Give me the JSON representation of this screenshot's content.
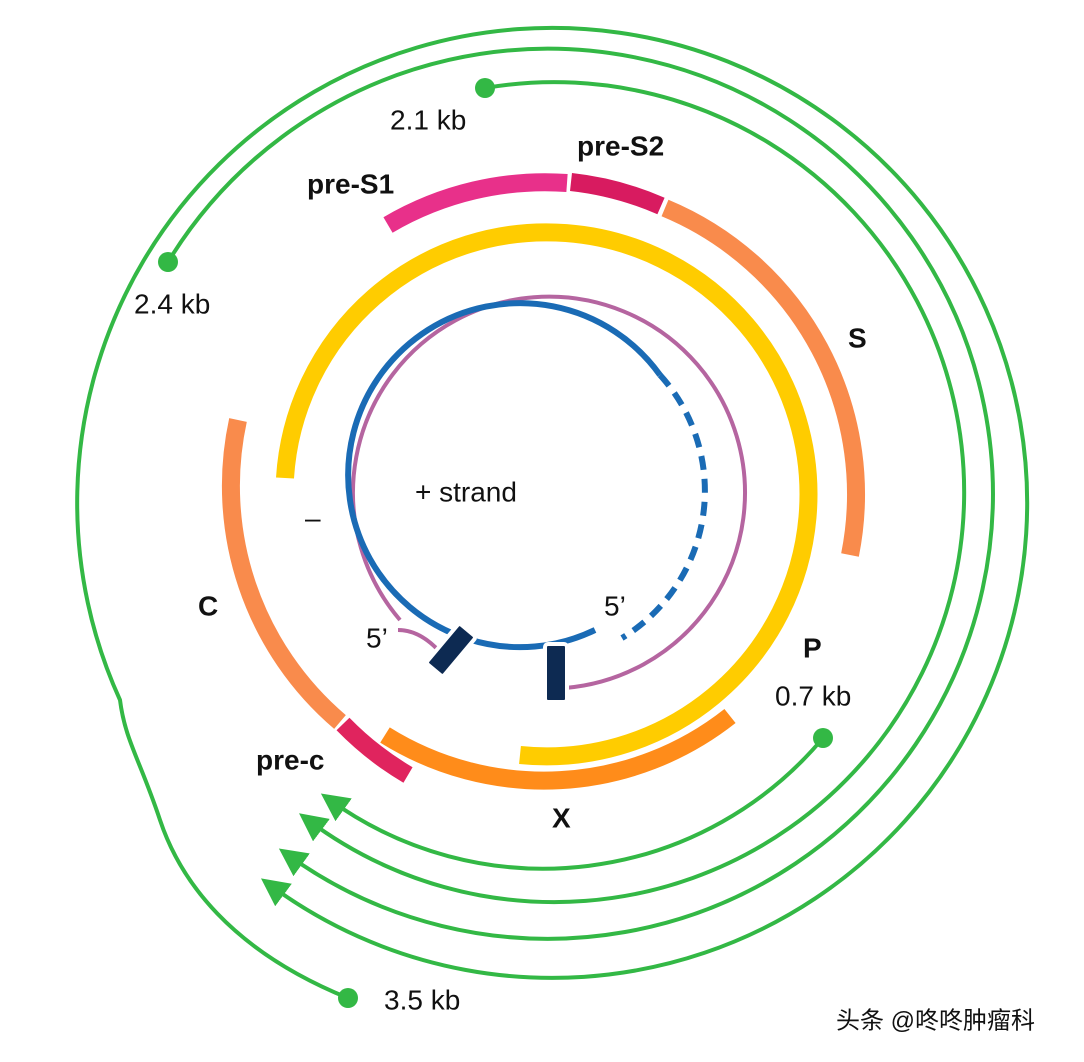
{
  "transcripts": {
    "kb_2_1": "2.1 kb",
    "kb_2_4": "2.4 kb",
    "kb_0_7": "0.7 kb",
    "kb_3_5": "3.5 kb"
  },
  "genes": {
    "pre_s1": "pre-S1",
    "pre_s2": "pre-S2",
    "s": "S",
    "c": "C",
    "pre_c": "pre-c",
    "p": "P",
    "x": "X"
  },
  "strands": {
    "plus": "+ strand",
    "minus": "–",
    "five_prime_minus": "5’",
    "five_prime_plus": "5’"
  },
  "watermark": "头条 @咚咚肿瘤科"
}
